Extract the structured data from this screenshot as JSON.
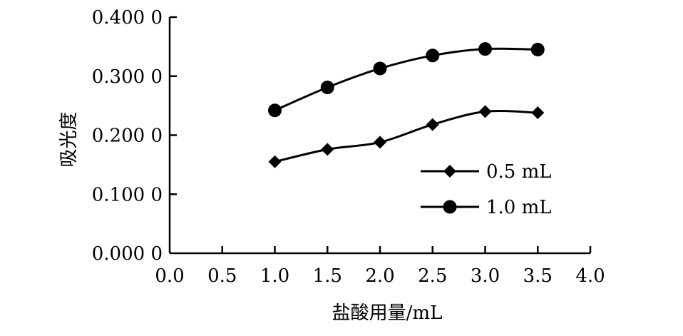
{
  "chart_data": {
    "type": "line",
    "title": "",
    "xlabel": "盐酸用量/mL",
    "ylabel": "吸光度",
    "xlim": [
      0,
      4.0
    ],
    "ylim": [
      0,
      0.4
    ],
    "x_ticks": [
      "0.0",
      "0.5",
      "1.0",
      "1.5",
      "2.0",
      "2.5",
      "3.0",
      "3.5",
      "4.0"
    ],
    "y_ticks": [
      "0.000 0",
      "0.100 0",
      "0.200 0",
      "0.300 0",
      "0.400 0"
    ],
    "grid": false,
    "legend_position": "right",
    "x": [
      1.0,
      1.5,
      2.0,
      2.5,
      3.0,
      3.5
    ],
    "series": [
      {
        "name": "0.5 mL",
        "marker": "diamond",
        "color": "#000000",
        "values": [
          0.155,
          0.176,
          0.188,
          0.218,
          0.24,
          0.238
        ]
      },
      {
        "name": "1.0 mL",
        "marker": "circle",
        "color": "#000000",
        "values": [
          0.242,
          0.281,
          0.313,
          0.335,
          0.346,
          0.345
        ]
      }
    ]
  }
}
